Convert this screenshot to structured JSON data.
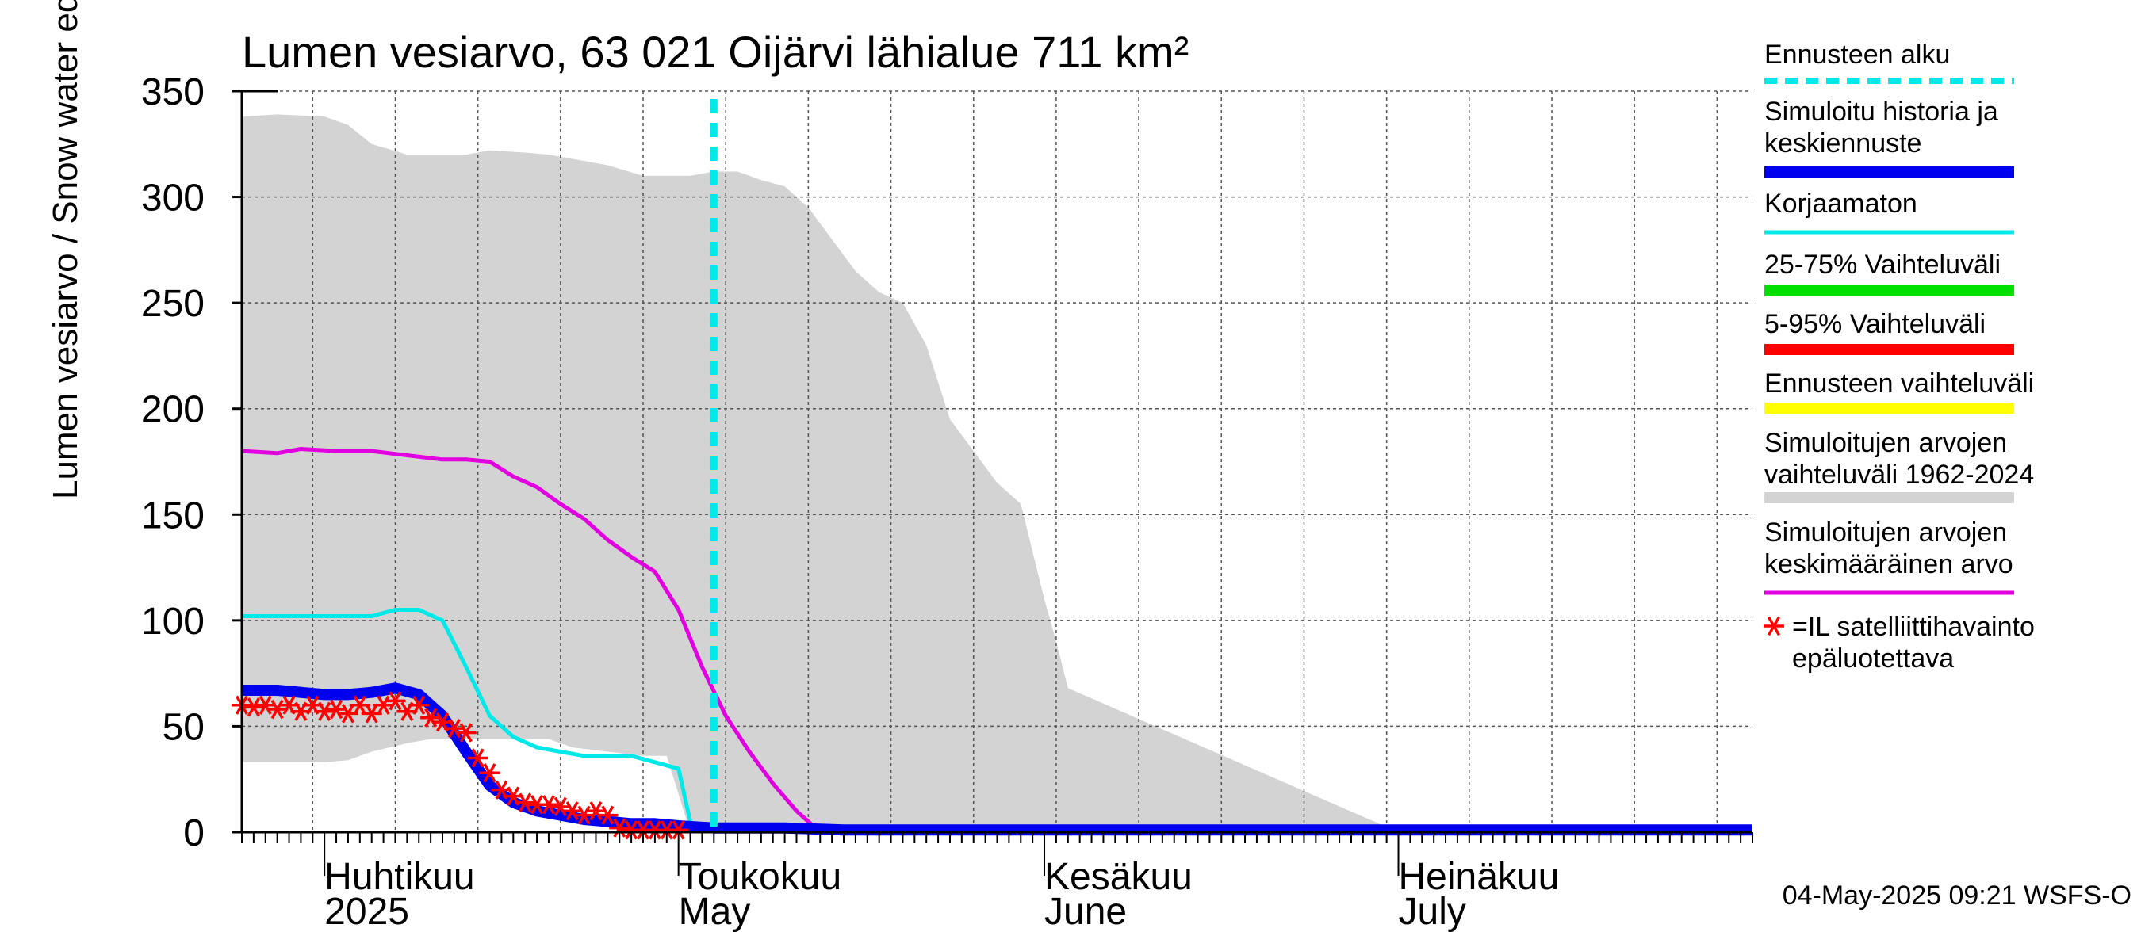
{
  "chart_data": {
    "type": "area",
    "title": "Lumen vesiarvo, 63 021 Oijärvi lähialue 711 km²",
    "ylabel": "Lumen vesiarvo / Snow water equiv.    mm",
    "ylim": [
      0,
      350
    ],
    "yticks": [
      0,
      50,
      100,
      150,
      200,
      250,
      300,
      350
    ],
    "xlim": [
      "2025-03-25",
      "2025-07-31"
    ],
    "x_month_labels": [
      {
        "date": "2025-04-01",
        "fi": "Huhtikuu",
        "en": "2025"
      },
      {
        "date": "2025-05-01",
        "fi": "Toukokuu",
        "en": "May"
      },
      {
        "date": "2025-06-01",
        "fi": "Kesäkuu",
        "en": "June"
      },
      {
        "date": "2025-07-01",
        "fi": "Heinäkuu",
        "en": "July"
      }
    ],
    "grid": true,
    "forecast_start": "2025-05-04",
    "series": [
      {
        "name": "Simuloitujen arvojen vaihteluväli 1962-2024",
        "kind": "band",
        "color": "#d3d3d3",
        "x": [
          "2025-03-25",
          "2025-03-28",
          "2025-04-01",
          "2025-04-03",
          "2025-04-05",
          "2025-04-08",
          "2025-04-10",
          "2025-04-13",
          "2025-04-15",
          "2025-04-18",
          "2025-04-20",
          "2025-04-22",
          "2025-04-25",
          "2025-04-28",
          "2025-04-30",
          "2025-05-02",
          "2025-05-04",
          "2025-05-06",
          "2025-05-08",
          "2025-05-10",
          "2025-05-12",
          "2025-05-14",
          "2025-05-16",
          "2025-05-18",
          "2025-05-20",
          "2025-05-22",
          "2025-05-24",
          "2025-05-26",
          "2025-05-28",
          "2025-05-30",
          "2025-06-01",
          "2025-06-02",
          "2025-06-03",
          "2025-06-31",
          "2025-07-31"
        ],
        "upper": [
          338,
          339,
          338,
          334,
          325,
          320,
          320,
          320,
          322,
          321,
          320,
          318,
          315,
          310,
          310,
          310,
          312,
          312,
          308,
          305,
          295,
          280,
          265,
          255,
          250,
          230,
          195,
          180,
          165,
          155,
          110,
          90,
          68,
          0,
          0
        ],
        "lower": [
          33,
          33,
          33,
          34,
          38,
          42,
          44,
          44,
          44,
          44,
          44,
          40,
          38,
          36,
          36,
          0,
          0,
          0,
          0,
          0,
          0,
          0,
          0,
          0,
          0,
          0,
          0,
          0,
          0,
          0,
          0,
          0,
          0,
          0,
          0
        ]
      },
      {
        "name": "Simuloitujen arvojen keskimääräinen arvo",
        "color": "#e000e0",
        "x": [
          "2025-03-25",
          "2025-03-28",
          "2025-03-30",
          "2025-04-02",
          "2025-04-05",
          "2025-04-08",
          "2025-04-11",
          "2025-04-13",
          "2025-04-15",
          "2025-04-17",
          "2025-04-19",
          "2025-04-21",
          "2025-04-23",
          "2025-04-25",
          "2025-04-27",
          "2025-04-29",
          "2025-05-01",
          "2025-05-03",
          "2025-05-05",
          "2025-05-07",
          "2025-05-09",
          "2025-05-11",
          "2025-05-13",
          "2025-05-15",
          "2025-07-31"
        ],
        "values": [
          180,
          179,
          181,
          180,
          180,
          178,
          176,
          176,
          175,
          168,
          163,
          155,
          148,
          138,
          130,
          123,
          105,
          78,
          55,
          38,
          23,
          10,
          0,
          0,
          0
        ]
      },
      {
        "name": "Korjaamaton",
        "color": "#00e8e8",
        "x": [
          "2025-03-25",
          "2025-03-28",
          "2025-04-01",
          "2025-04-05",
          "2025-04-07",
          "2025-04-09",
          "2025-04-11",
          "2025-04-13",
          "2025-04-15",
          "2025-04-17",
          "2025-04-19",
          "2025-04-21",
          "2025-04-23",
          "2025-04-25",
          "2025-04-27",
          "2025-04-29",
          "2025-05-01",
          "2025-05-02"
        ],
        "values": [
          102,
          102,
          102,
          102,
          105,
          105,
          100,
          78,
          55,
          45,
          40,
          38,
          36,
          36,
          36,
          33,
          30,
          5
        ]
      },
      {
        "name": "Simuloitu historia ja keskiennuste",
        "color": "#0000ee",
        "x": [
          "2025-03-25",
          "2025-03-28",
          "2025-04-01",
          "2025-04-03",
          "2025-04-05",
          "2025-04-07",
          "2025-04-09",
          "2025-04-11",
          "2025-04-13",
          "2025-04-15",
          "2025-04-17",
          "2025-04-19",
          "2025-04-21",
          "2025-04-23",
          "2025-04-25",
          "2025-04-27",
          "2025-04-29",
          "2025-05-01",
          "2025-05-04",
          "2025-05-10",
          "2025-05-15",
          "2025-07-31"
        ],
        "values": [
          67,
          67,
          65,
          65,
          66,
          68,
          65,
          55,
          38,
          22,
          14,
          10,
          8,
          6,
          5,
          4,
          4,
          3,
          2,
          2,
          1,
          1
        ]
      },
      {
        "name": "=IL satelliittihavainto epäluotettava",
        "kind": "markers",
        "color": "#ff0000",
        "x": [
          "2025-03-25",
          "2025-03-26",
          "2025-03-27",
          "2025-03-28",
          "2025-03-29",
          "2025-03-30",
          "2025-03-31",
          "2025-04-01",
          "2025-04-02",
          "2025-04-03",
          "2025-04-04",
          "2025-04-05",
          "2025-04-06",
          "2025-04-07",
          "2025-04-08",
          "2025-04-09",
          "2025-04-10",
          "2025-04-11",
          "2025-04-12",
          "2025-04-13",
          "2025-04-14",
          "2025-04-15",
          "2025-04-16",
          "2025-04-17",
          "2025-04-18",
          "2025-04-19",
          "2025-04-20",
          "2025-04-21",
          "2025-04-22",
          "2025-04-23",
          "2025-04-24",
          "2025-04-25",
          "2025-04-26",
          "2025-04-27",
          "2025-04-28",
          "2025-04-29",
          "2025-04-30",
          "2025-05-01"
        ],
        "values": [
          60,
          59,
          60,
          58,
          60,
          57,
          60,
          57,
          58,
          56,
          60,
          56,
          60,
          62,
          57,
          60,
          54,
          52,
          49,
          47,
          35,
          28,
          20,
          17,
          14,
          13,
          13,
          12,
          10,
          8,
          10,
          8,
          2,
          1,
          1,
          1,
          1,
          1
        ]
      }
    ]
  },
  "legend": {
    "items": [
      {
        "label": "Ennusteen alku",
        "color": "#00e8e8",
        "style": "dashed"
      },
      {
        "label": "Simuloitu historia ja\nkeskiennuste",
        "color": "#0000ee",
        "style": "thick"
      },
      {
        "label": "Korjaamaton",
        "color": "#00e8e8",
        "style": "thin"
      },
      {
        "label": "25-75% Vaihteluväli",
        "color": "#00e000",
        "style": "band"
      },
      {
        "label": "5-95% Vaihteluväli",
        "color": "#ff0000",
        "style": "band"
      },
      {
        "label": "Ennusteen vaihteluväli",
        "color": "#ffff00",
        "style": "band"
      },
      {
        "label": "Simuloitujen arvojen\nvaihteluväli 1962-2024",
        "color": "#d3d3d3",
        "style": "band"
      },
      {
        "label": "Simuloitujen arvojen\nkeskimääräinen arvo",
        "color": "#e000e0",
        "style": "thin"
      },
      {
        "label": "=IL satelliittihavainto\nepäluotettava",
        "color": "#ff0000",
        "style": "marker"
      }
    ]
  },
  "footer": "04-May-2025 09:21 WSFS-O"
}
